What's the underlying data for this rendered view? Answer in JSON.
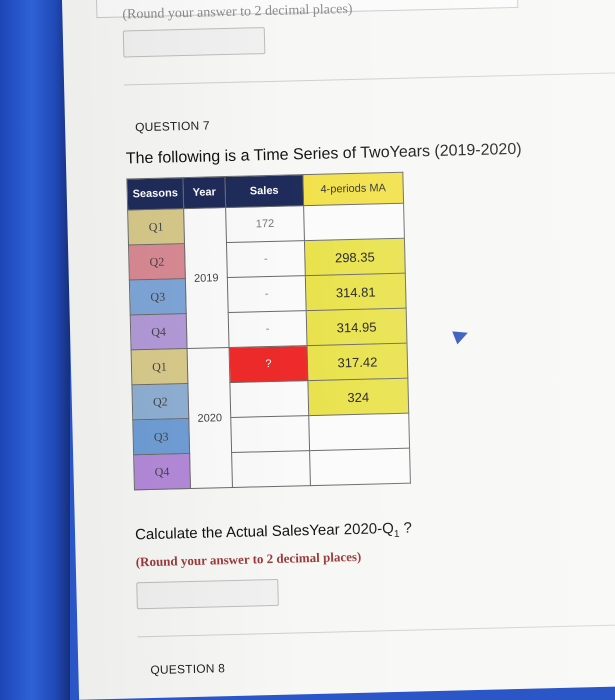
{
  "prev_question": {
    "note": "(Round your answer to 2 decimal places)"
  },
  "question7": {
    "label": "QUESTION 7",
    "heading": "The following is a Time Series of TwoYears (2019-2020)",
    "table": {
      "headers": [
        "Seasons",
        "Year",
        "Sales",
        "4-periods MA"
      ],
      "season_labels": [
        "Q1",
        "Q2",
        "Q3",
        "Q4",
        "Q1",
        "Q2",
        "Q3",
        "Q4"
      ],
      "years": [
        "2019",
        "2020"
      ],
      "sales": [
        "172",
        "-",
        "-",
        "-",
        "?",
        "",
        "",
        ""
      ],
      "ma": [
        "",
        "298.35",
        "314.81",
        "314.95",
        "317.42",
        "324",
        "",
        ""
      ]
    },
    "calc": {
      "text": "Calculate the Actual SalesYear 2020-Q",
      "sub": "1",
      "suffix": " ?"
    },
    "note": "(Round your answer to 2 decimal places)"
  },
  "question8": {
    "label": "QUESTION 8"
  },
  "colors": {
    "season_cells": [
      "#d7c98a",
      "#d98a93",
      "#7fa6d9",
      "#b39ad9",
      "#d9cb8b",
      "#8fb0d4",
      "#6f9ed6",
      "#b48ad9"
    ],
    "header_dark": "#1f2b5a",
    "header_ma": "#f2e14a",
    "ma_yellow": "#e9e24c",
    "sales_highlight": "#ee2a2a"
  }
}
